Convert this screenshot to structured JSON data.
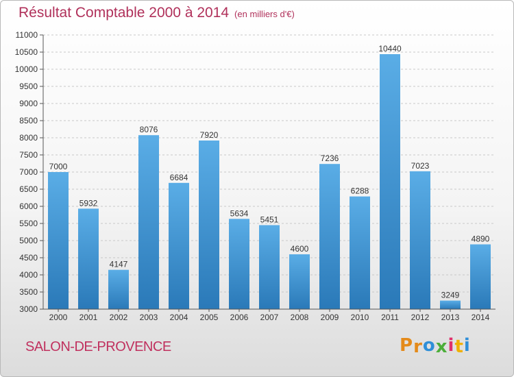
{
  "title": "Résultat Comptable 2000 à 2014",
  "subtitle": "(en milliers d'€)",
  "city": "SALON-DE-PROVENCE",
  "logo": {
    "letters": [
      "P",
      "r",
      "o",
      "x",
      "i",
      "t",
      "i"
    ]
  },
  "colors": {
    "title": "#b0305a",
    "bar_top": "#5aade6",
    "bar_bottom": "#2a79b8",
    "grid": "#c8c8c8",
    "logo": [
      "#e48a1a",
      "#e48a1a",
      "#2f8fd8",
      "#4cae3a",
      "#e02f6b",
      "#f0b000",
      "#2f8fd8"
    ]
  },
  "chart_data": {
    "type": "bar",
    "categories": [
      "2000",
      "2001",
      "2002",
      "2003",
      "2004",
      "2005",
      "2006",
      "2007",
      "2008",
      "2009",
      "2010",
      "2011",
      "2012",
      "2013",
      "2014"
    ],
    "values": [
      7000,
      5932,
      4147,
      8076,
      6684,
      7920,
      5634,
      5451,
      4600,
      7236,
      6288,
      10440,
      7023,
      3249,
      4890
    ],
    "data_labels": [
      "7000",
      "5932",
      "4147",
      "8076",
      "6684",
      "7920",
      "5634",
      "5451",
      "4600",
      "7236",
      "6288",
      "10440",
      "7023",
      "3249",
      "4890"
    ],
    "ylim": [
      3000,
      11000
    ],
    "yticks": [
      3000,
      3500,
      4000,
      4500,
      5000,
      5500,
      6000,
      6500,
      7000,
      7500,
      8000,
      8500,
      9000,
      9500,
      10000,
      10500,
      11000
    ],
    "grid": "horizontal dashed",
    "xlabel": "",
    "ylabel": ""
  }
}
